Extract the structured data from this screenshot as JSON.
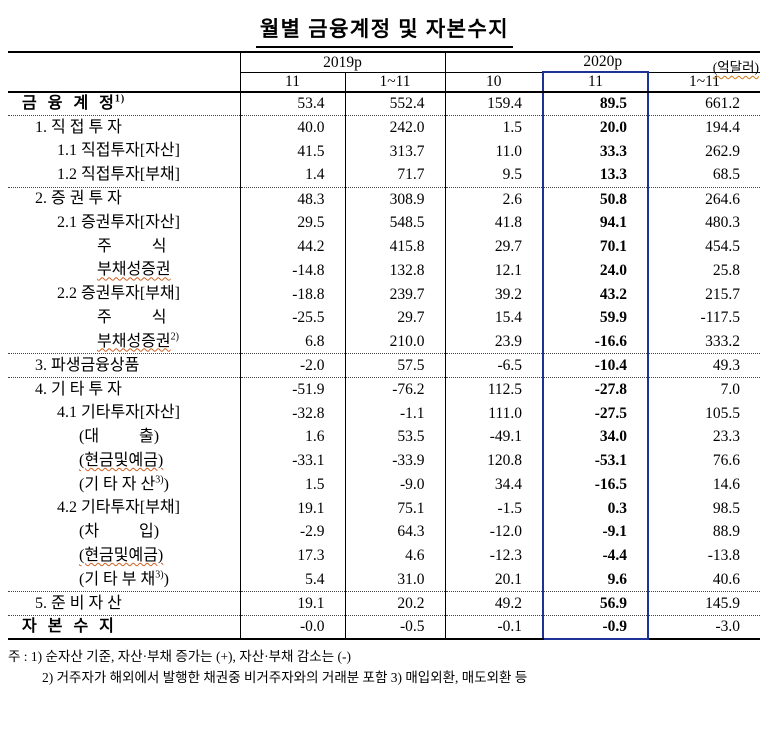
{
  "title": "월별 금융계정 및 자본수지",
  "unit_label": "(억달러)",
  "colors": {
    "highlight_box": "#1e3296",
    "squiggle": "#cc6020",
    "text": "#000000",
    "background": "#ffffff"
  },
  "table": {
    "header": {
      "groups": [
        {
          "label": "2019p"
        },
        {
          "label": "2020p"
        }
      ],
      "sub": [
        "11",
        "1~11",
        "10",
        "11",
        "1~11"
      ],
      "highlight_col_index": 3
    },
    "rows": [
      {
        "label": "금  융  계  정",
        "sup": "1)",
        "indent": 0,
        "bold": true,
        "sep": true,
        "values": [
          "53.4",
          "552.4",
          "159.4",
          "89.5",
          "661.2"
        ]
      },
      {
        "label": "1. 직 접 투 자",
        "indent": 1,
        "values": [
          "40.0",
          "242.0",
          "1.5",
          "20.0",
          "194.4"
        ]
      },
      {
        "label": "1.1 직접투자[자산]",
        "indent": 2,
        "values": [
          "41.5",
          "313.7",
          "11.0",
          "33.3",
          "262.9"
        ]
      },
      {
        "label": "1.2 직접투자[부채]",
        "indent": 2,
        "sep": true,
        "values": [
          "1.4",
          "71.7",
          "9.5",
          "13.3",
          "68.5"
        ]
      },
      {
        "label": "2. 증 권 투 자",
        "indent": 1,
        "values": [
          "48.3",
          "308.9",
          "2.6",
          "50.8",
          "264.6"
        ]
      },
      {
        "label": "2.1 증권투자[자산]",
        "indent": 2,
        "values": [
          "29.5",
          "548.5",
          "41.8",
          "94.1",
          "480.3"
        ]
      },
      {
        "label": "주          식",
        "indent": 3,
        "values": [
          "44.2",
          "415.8",
          "29.7",
          "70.1",
          "454.5"
        ]
      },
      {
        "label": "부채성증권",
        "indent": 3,
        "squiggle": true,
        "values": [
          "-14.8",
          "132.8",
          "12.1",
          "24.0",
          "25.8"
        ]
      },
      {
        "label": "2.2 증권투자[부채]",
        "indent": 2,
        "values": [
          "-18.8",
          "239.7",
          "39.2",
          "43.2",
          "215.7"
        ]
      },
      {
        "label": "주          식",
        "indent": 3,
        "values": [
          "-25.5",
          "29.7",
          "15.4",
          "59.9",
          "-117.5"
        ]
      },
      {
        "label": "부채성증권",
        "sup": "2)",
        "indent": 3,
        "squiggle": true,
        "sep": true,
        "values": [
          "6.8",
          "210.0",
          "23.9",
          "-16.6",
          "333.2"
        ]
      },
      {
        "label": "3. 파생금융상품",
        "indent": 1,
        "sep": true,
        "values": [
          "-2.0",
          "57.5",
          "-6.5",
          "-10.4",
          "49.3"
        ]
      },
      {
        "label": "4. 기 타 투 자",
        "indent": 1,
        "values": [
          "-51.9",
          "-76.2",
          "112.5",
          "-27.8",
          "7.0"
        ]
      },
      {
        "label": "4.1 기타투자[자산]",
        "indent": 2,
        "values": [
          "-32.8",
          "-1.1",
          "111.0",
          "-27.5",
          "105.5"
        ]
      },
      {
        "label": "(대          출)",
        "indent": 4,
        "values": [
          "1.6",
          "53.5",
          "-49.1",
          "34.0",
          "23.3"
        ]
      },
      {
        "label": "(현금및예금)",
        "indent": 4,
        "squiggle": true,
        "values": [
          "-33.1",
          "-33.9",
          "120.8",
          "-53.1",
          "76.6"
        ]
      },
      {
        "label": "(기 타 자 산",
        "sup": "3)",
        "tail": ")",
        "indent": 4,
        "values": [
          "1.5",
          "-9.0",
          "34.4",
          "-16.5",
          "14.6"
        ]
      },
      {
        "label": "4.2 기타투자[부채]",
        "indent": 2,
        "values": [
          "19.1",
          "75.1",
          "-1.5",
          "0.3",
          "98.5"
        ]
      },
      {
        "label": "(차          입)",
        "indent": 4,
        "values": [
          "-2.9",
          "64.3",
          "-12.0",
          "-9.1",
          "88.9"
        ]
      },
      {
        "label": "(현금및예금)",
        "indent": 4,
        "squiggle": true,
        "values": [
          "17.3",
          "4.6",
          "-12.3",
          "-4.4",
          "-13.8"
        ]
      },
      {
        "label": "(기 타 부 채",
        "sup": "3)",
        "tail": ")",
        "indent": 4,
        "sep": true,
        "values": [
          "5.4",
          "31.0",
          "20.1",
          "9.6",
          "40.6"
        ]
      },
      {
        "label": "5. 준 비 자 산",
        "indent": 1,
        "sep": true,
        "values": [
          "19.1",
          "20.2",
          "49.2",
          "56.9",
          "145.9"
        ]
      },
      {
        "label": "자  본  수  지",
        "indent": 0,
        "bold": true,
        "values": [
          "-0.0",
          "-0.5",
          "-0.1",
          "-0.9",
          "-3.0"
        ]
      }
    ]
  },
  "footnotes": {
    "line1": "주 : 1) 순자산 기준, 자산·부채 증가는 (+), 자산·부채 감소는 (-)",
    "line2": "2) 거주자가 해외에서 발행한 채권중 비거주자와의 거래분 포함  3) 매입외환, 매도외환 등"
  }
}
